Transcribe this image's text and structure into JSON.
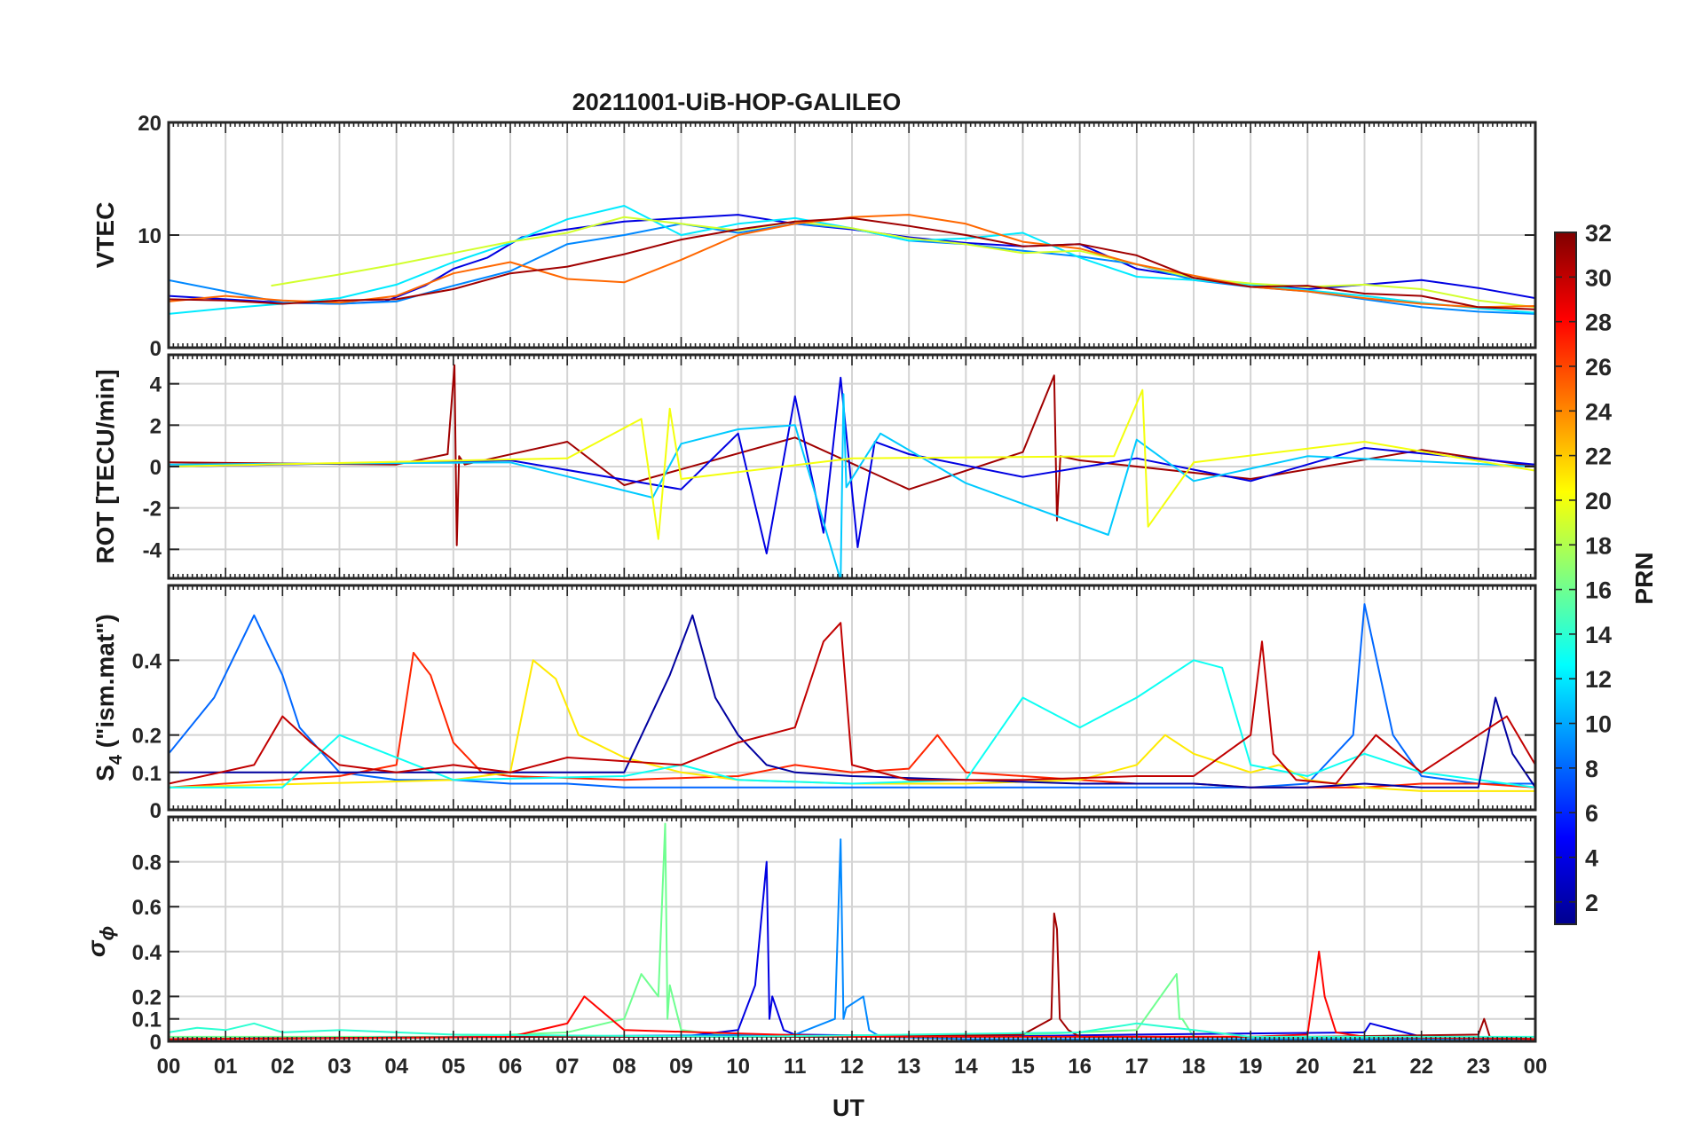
{
  "figure": {
    "title": "20211001-UiB-HOP-GALILEO",
    "xlabel": "UT",
    "x_ticklabels": [
      "00",
      "01",
      "02",
      "03",
      "04",
      "05",
      "06",
      "07",
      "08",
      "09",
      "10",
      "11",
      "12",
      "13",
      "14",
      "15",
      "16",
      "17",
      "18",
      "19",
      "20",
      "21",
      "22",
      "23",
      "00"
    ],
    "colorbar": {
      "label": "PRN",
      "range": [
        1,
        32
      ],
      "colormap": "jet",
      "ticklabels": [
        "2",
        "4",
        "6",
        "8",
        "10",
        "12",
        "14",
        "16",
        "18",
        "20",
        "22",
        "24",
        "26",
        "28",
        "30",
        "32"
      ]
    }
  },
  "chart_data": [
    {
      "type": "line",
      "panel": "vtec",
      "ylabel": "VTEC",
      "ylim": [
        0,
        20
      ],
      "yticks": [
        0,
        10,
        20
      ],
      "x_unit": "UT hour",
      "grid": true,
      "series": [
        {
          "prn": 4,
          "x": [
            0,
            1,
            2,
            3,
            3.8,
            4.5,
            5,
            5.6,
            6.2,
            7,
            8,
            9,
            10,
            11,
            12,
            13,
            14,
            15,
            16,
            17,
            18,
            19,
            20,
            21,
            22,
            23,
            24
          ],
          "y": [
            4.6,
            4.3,
            4.0,
            3.9,
            4.1,
            5.5,
            7,
            8,
            9.8,
            10.5,
            11.2,
            11.5,
            11.8,
            11,
            10.5,
            9.8,
            9.3,
            9,
            9.2,
            7,
            6.2,
            5.6,
            5.2,
            5.6,
            6,
            5.3,
            4.4
          ]
        },
        {
          "prn": 9,
          "x": [
            0,
            1,
            2,
            3,
            4,
            5,
            6,
            7,
            8,
            9,
            10,
            11,
            12,
            13,
            14,
            15,
            16,
            17,
            18,
            19,
            20,
            21,
            22,
            23,
            24
          ],
          "y": [
            6,
            5,
            4,
            3.9,
            4.1,
            5.5,
            6.8,
            9.2,
            10,
            11,
            10.2,
            11,
            10.6,
            9.5,
            9.2,
            8.6,
            8.1,
            7.4,
            6,
            5.4,
            5,
            4.3,
            3.6,
            3.2,
            3
          ]
        },
        {
          "prn": 12,
          "x": [
            0,
            1,
            2,
            3,
            4,
            5,
            6,
            7,
            8,
            9,
            10,
            11,
            12,
            13,
            14,
            15,
            16,
            17,
            18,
            19,
            20,
            21,
            22,
            23,
            24
          ],
          "y": [
            3,
            3.5,
            3.9,
            4.4,
            5.6,
            7.6,
            9.3,
            11.4,
            12.6,
            10,
            11,
            11.5,
            10.6,
            9.5,
            9.7,
            10.2,
            8,
            6.3,
            6,
            5.6,
            5.1,
            4.6,
            4,
            3.5,
            3.1
          ]
        },
        {
          "prn": 19,
          "x": [
            1.8,
            3,
            4,
            5,
            6,
            7,
            8,
            9,
            10,
            11,
            12,
            13,
            14,
            15,
            16,
            17,
            18,
            19,
            20,
            21,
            22,
            23,
            24
          ],
          "y": [
            5.5,
            6.5,
            7.4,
            8.4,
            9.4,
            10.2,
            11.6,
            11,
            10.4,
            11.2,
            10.6,
            9.7,
            9.2,
            8.4,
            8.6,
            7.4,
            6.2,
            5.7,
            5.4,
            5.6,
            5.2,
            4.2,
            3.6
          ]
        },
        {
          "prn": 25,
          "x": [
            0,
            1,
            2,
            3,
            4,
            5,
            6,
            7,
            8,
            9,
            10,
            11,
            12,
            13,
            14,
            15,
            16,
            17,
            18,
            19,
            20,
            21,
            22,
            23,
            24
          ],
          "y": [
            4.1,
            4.6,
            4.2,
            4,
            4.6,
            6.6,
            7.6,
            6.1,
            5.8,
            7.8,
            10,
            11,
            11.6,
            11.8,
            11,
            9.4,
            8.8,
            7.4,
            6.4,
            5.4,
            5,
            4.4,
            3.9,
            3.6,
            3.7
          ]
        },
        {
          "prn": 31,
          "x": [
            0,
            1,
            2,
            3,
            4,
            5,
            6,
            7,
            8,
            9,
            10,
            11,
            12,
            13,
            14,
            15,
            16,
            17,
            18,
            19,
            20,
            21,
            22,
            23,
            24
          ],
          "y": [
            4.3,
            4.2,
            3.9,
            4.2,
            4.3,
            5.2,
            6.6,
            7.2,
            8.3,
            9.6,
            10.5,
            11.2,
            11.5,
            10.8,
            10,
            9,
            9.2,
            8.2,
            6.2,
            5.4,
            5.5,
            4.8,
            4.6,
            3.6,
            3.4
          ]
        }
      ]
    },
    {
      "type": "line",
      "panel": "rot",
      "ylabel": "ROT [TECU/min]",
      "ylim": [
        -5.4,
        5.4
      ],
      "yticks": [
        -4,
        -2,
        0,
        2,
        4
      ],
      "x_unit": "UT hour",
      "grid": true,
      "series": [
        {
          "prn": 31,
          "x": [
            0,
            4,
            4.9,
            5.02,
            5.06,
            5.1,
            5.2,
            7,
            8,
            11,
            13,
            15,
            15.55,
            15.6,
            15.66,
            16,
            19,
            22,
            24
          ],
          "y": [
            0.2,
            0.1,
            0.6,
            4.9,
            -3.8,
            0.5,
            0.1,
            1.2,
            -0.9,
            1.4,
            -1.1,
            0.7,
            4.4,
            -2.6,
            0.5,
            0.3,
            -0.6,
            0.8,
            0
          ]
        },
        {
          "prn": 4,
          "x": [
            0,
            6,
            9,
            10,
            10.5,
            11,
            11.5,
            11.8,
            12.1,
            12.4,
            13,
            15,
            17,
            19,
            21,
            24
          ],
          "y": [
            0,
            0.3,
            -1.1,
            1.6,
            -4.2,
            3.4,
            -3.2,
            4.3,
            -3.9,
            1.2,
            0.6,
            -0.5,
            0.4,
            -0.7,
            0.9,
            0.1
          ]
        },
        {
          "prn": 11,
          "x": [
            0,
            6,
            8.5,
            9,
            10,
            11,
            11.8,
            11.85,
            11.9,
            12.5,
            14,
            16.5,
            17,
            18,
            20,
            24
          ],
          "y": [
            0.1,
            0.2,
            -1.5,
            1.1,
            1.8,
            2,
            -5.5,
            3.5,
            -1,
            1.6,
            -0.8,
            -3.3,
            1.3,
            -0.7,
            0.5,
            0
          ]
        },
        {
          "prn": 20,
          "x": [
            0,
            7,
            8.3,
            8.6,
            8.8,
            9,
            12,
            16.6,
            17.1,
            17.2,
            18,
            21,
            24
          ],
          "y": [
            0,
            0.4,
            2.3,
            -3.5,
            2.8,
            -0.6,
            0.4,
            0.5,
            3.7,
            -2.9,
            0.2,
            1.2,
            -0.2
          ]
        }
      ]
    },
    {
      "type": "line",
      "panel": "s4",
      "ylabel": "S4 (\"ism.mat\")",
      "ylim": [
        0,
        0.6
      ],
      "yticks": [
        0,
        0.1,
        0.2,
        0.4
      ],
      "x_unit": "UT hour",
      "grid": true,
      "series": [
        {
          "prn": 8,
          "x": [
            0,
            0.8,
            1.5,
            2,
            2.3,
            3,
            4,
            5,
            6,
            7,
            8,
            9,
            10,
            11,
            12,
            13,
            14,
            15,
            16,
            17,
            18,
            19,
            20,
            20.8,
            21,
            21.5,
            22,
            23,
            24
          ],
          "y": [
            0.15,
            0.3,
            0.52,
            0.36,
            0.22,
            0.1,
            0.08,
            0.08,
            0.07,
            0.07,
            0.06,
            0.06,
            0.06,
            0.06,
            0.06,
            0.06,
            0.06,
            0.06,
            0.06,
            0.06,
            0.06,
            0.06,
            0.07,
            0.2,
            0.55,
            0.2,
            0.09,
            0.07,
            0.07
          ]
        },
        {
          "prn": 27,
          "x": [
            0,
            3,
            4,
            4.3,
            4.6,
            5,
            5.5,
            6,
            8,
            10,
            11,
            12,
            13,
            13.5,
            14,
            15,
            16,
            17,
            18,
            19,
            20,
            21,
            22,
            23,
            24
          ],
          "y": [
            0.06,
            0.09,
            0.12,
            0.42,
            0.36,
            0.18,
            0.1,
            0.09,
            0.08,
            0.09,
            0.12,
            0.1,
            0.11,
            0.2,
            0.1,
            0.09,
            0.08,
            0.07,
            0.07,
            0.06,
            0.06,
            0.06,
            0.07,
            0.07,
            0.06
          ]
        },
        {
          "prn": 21,
          "x": [
            0,
            5,
            6,
            6.4,
            6.8,
            7.2,
            8,
            9,
            10,
            12,
            14,
            16,
            17,
            17.5,
            18,
            19,
            19.5,
            20,
            21,
            22,
            24
          ],
          "y": [
            0.06,
            0.08,
            0.1,
            0.4,
            0.35,
            0.2,
            0.14,
            0.1,
            0.08,
            0.07,
            0.07,
            0.08,
            0.12,
            0.2,
            0.15,
            0.1,
            0.12,
            0.08,
            0.06,
            0.05,
            0.05
          ]
        },
        {
          "prn": 13,
          "x": [
            0,
            2,
            3,
            5,
            8,
            9,
            10,
            12,
            14,
            15,
            16,
            17,
            17.5,
            18,
            18.5,
            19,
            20,
            21,
            22,
            24
          ],
          "y": [
            0.06,
            0.06,
            0.2,
            0.08,
            0.09,
            0.12,
            0.08,
            0.07,
            0.08,
            0.3,
            0.22,
            0.3,
            0.35,
            0.4,
            0.38,
            0.12,
            0.09,
            0.15,
            0.1,
            0.06
          ]
        },
        {
          "prn": 2,
          "x": [
            0,
            5,
            8,
            8.8,
            9.2,
            9.6,
            10,
            10.5,
            11,
            12,
            14,
            16,
            18,
            19,
            20,
            21,
            22,
            23,
            23.3,
            23.6,
            24
          ],
          "y": [
            0.1,
            0.1,
            0.1,
            0.36,
            0.52,
            0.3,
            0.2,
            0.12,
            0.1,
            0.09,
            0.08,
            0.07,
            0.07,
            0.06,
            0.06,
            0.07,
            0.06,
            0.06,
            0.3,
            0.15,
            0.06
          ]
        },
        {
          "prn": 30,
          "x": [
            0,
            1.5,
            2,
            2.5,
            3,
            4,
            5,
            6,
            7,
            9,
            10,
            11,
            11.5,
            11.8,
            12,
            13,
            15,
            17,
            18,
            19,
            19.2,
            19.4,
            19.8,
            20.5,
            21.2,
            22,
            23,
            23.5,
            24
          ],
          "y": [
            0.07,
            0.12,
            0.25,
            0.18,
            0.12,
            0.1,
            0.12,
            0.1,
            0.14,
            0.12,
            0.18,
            0.22,
            0.45,
            0.5,
            0.12,
            0.08,
            0.08,
            0.09,
            0.09,
            0.2,
            0.45,
            0.15,
            0.08,
            0.07,
            0.2,
            0.1,
            0.2,
            0.25,
            0.12
          ]
        }
      ]
    },
    {
      "type": "line",
      "panel": "sigma_phi",
      "ylabel": "σϕ",
      "ylim": [
        0,
        1
      ],
      "yticks": [
        0,
        0.1,
        0.2,
        0.4,
        0.6,
        0.8
      ],
      "x_unit": "UT hour",
      "grid": true,
      "series": [
        {
          "prn": 16,
          "x": [
            0,
            5,
            7,
            8,
            8.3,
            8.6,
            8.72,
            8.76,
            8.8,
            9,
            10,
            14,
            17,
            17.7,
            17.75,
            17.8,
            18,
            24
          ],
          "y": [
            0.02,
            0.02,
            0.04,
            0.1,
            0.3,
            0.2,
            0.97,
            0.1,
            0.25,
            0.05,
            0.02,
            0.02,
            0.05,
            0.3,
            0.1,
            0.1,
            0.02,
            0.01
          ]
        },
        {
          "prn": 4,
          "x": [
            0,
            6,
            9,
            10,
            10.3,
            10.5,
            10.55,
            10.6,
            10.8,
            11,
            14,
            17,
            21,
            21.1,
            22,
            24
          ],
          "y": [
            0.01,
            0.02,
            0.02,
            0.05,
            0.25,
            0.8,
            0.1,
            0.2,
            0.05,
            0.03,
            0.02,
            0.03,
            0.04,
            0.08,
            0.02,
            0.01
          ]
        },
        {
          "prn": 9,
          "x": [
            0,
            11,
            11.7,
            11.8,
            11.85,
            11.9,
            12.2,
            12.3,
            12.5,
            14,
            24
          ],
          "y": [
            0.01,
            0.03,
            0.1,
            0.9,
            0.1,
            0.15,
            0.2,
            0.05,
            0.02,
            0.01,
            0.01
          ]
        },
        {
          "prn": 31,
          "x": [
            0,
            7,
            12,
            15,
            15.5,
            15.55,
            15.6,
            15.65,
            15.8,
            16,
            20,
            23,
            23.1,
            23.2,
            24
          ],
          "y": [
            0.01,
            0.02,
            0.02,
            0.03,
            0.1,
            0.57,
            0.5,
            0.1,
            0.05,
            0.02,
            0.02,
            0.03,
            0.1,
            0.02,
            0.01
          ]
        },
        {
          "prn": 28,
          "x": [
            0,
            6,
            7,
            7.3,
            8,
            12,
            16,
            19,
            20,
            20.15,
            20.2,
            20.3,
            20.5,
            21,
            24
          ],
          "y": [
            0.01,
            0.02,
            0.08,
            0.2,
            0.05,
            0.02,
            0.02,
            0.02,
            0.03,
            0.3,
            0.4,
            0.2,
            0.04,
            0.02,
            0.01
          ]
        },
        {
          "prn": 14,
          "x": [
            0,
            0.5,
            1,
            1.5,
            2,
            3,
            5,
            10,
            16,
            16.5,
            17,
            18,
            19,
            24
          ],
          "y": [
            0.04,
            0.06,
            0.05,
            0.08,
            0.04,
            0.05,
            0.03,
            0.02,
            0.04,
            0.06,
            0.08,
            0.05,
            0.02,
            0.02
          ]
        }
      ]
    }
  ]
}
